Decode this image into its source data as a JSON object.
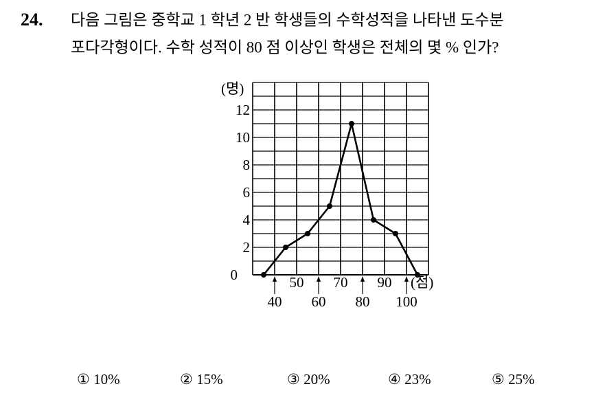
{
  "question": {
    "number": "24.",
    "lines": [
      "다음 그림은 중학교 1 학년 2 반 학생들의 수학성적을 나타낸 도수분",
      "포다각형이다. 수학 성적이 80 점 이상인 학생은 전체의 몇 % 인가?"
    ]
  },
  "chart_data": {
    "type": "line",
    "y_unit": "(명)",
    "x_unit": "(점)",
    "x": [
      35,
      45,
      55,
      65,
      75,
      85,
      95,
      105
    ],
    "values": [
      0,
      2,
      3,
      5,
      11,
      4,
      3,
      0
    ],
    "color": "#000000",
    "xlim": [
      30,
      110
    ],
    "xticks": [
      40,
      50,
      60,
      70,
      80,
      90,
      100
    ],
    "ylim": [
      0,
      14
    ],
    "yticks": [
      0,
      2,
      4,
      6,
      8,
      10,
      12
    ],
    "grid": true
  },
  "choices": [
    "① 10%",
    "② 15%",
    "③ 20%",
    "④ 23%",
    "⑤ 25%"
  ]
}
